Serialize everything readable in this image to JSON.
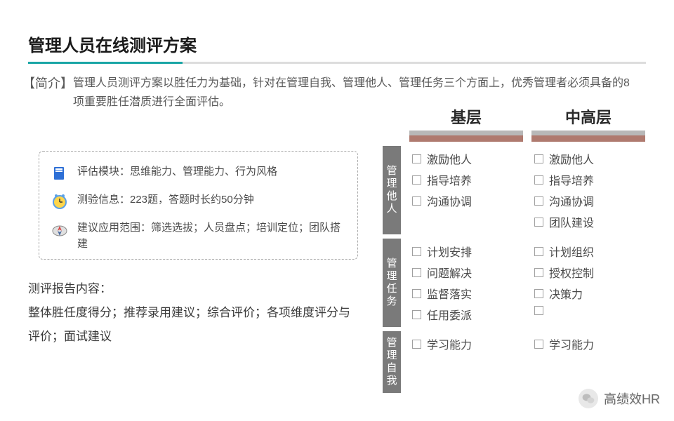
{
  "title": "管理人员在线测评方案",
  "intro": {
    "tag": "【简介】",
    "text": "管理人员测评方案以胜任力为基础，针对在管理自我、管理他人、管理任务三个方面上，优秀管理者必须具备的8项重要胜任潜质进行全面评估。"
  },
  "info_box": {
    "items": [
      {
        "icon": "book",
        "text": "评估模块：思维能力、管理能力、行为风格"
      },
      {
        "icon": "clock",
        "text": "测验信息：223题，答题时长约50分钟"
      },
      {
        "icon": "compass",
        "text": "建议应用范围：筛选选拔；人员盘点；培训定位；团队搭建"
      }
    ]
  },
  "report": {
    "heading": "测评报告内容：",
    "body": "整体胜任度得分；推荐录用建议；综合评价；各项维度评分与评价；面试建议"
  },
  "matrix": {
    "columns": [
      {
        "label": "基层"
      },
      {
        "label": "中高层"
      }
    ],
    "header_bar_colors": {
      "top": "#b8b8b8",
      "bottom": "#af7a6f"
    },
    "row_label_bg": "#7a7a7a",
    "rows": [
      {
        "label": "管理他人",
        "cells": [
          [
            "激励他人",
            "指导培养",
            "沟通协调"
          ],
          [
            "激励他人",
            "指导培养",
            "沟通协调",
            "团队建设"
          ]
        ]
      },
      {
        "label": "管理任务",
        "cells": [
          [
            "计划安排",
            "问题解决",
            "监督落实",
            "任用委派"
          ],
          [
            "计划组织",
            "授权控制",
            "决策力",
            ""
          ]
        ]
      },
      {
        "label": "管理自我",
        "cells": [
          [
            "学习能力"
          ],
          [
            "学习能力"
          ]
        ]
      }
    ]
  },
  "watermark": {
    "text": "高绩效HR"
  },
  "icons": {
    "book_colors": {
      "cover": "#2d6fd6",
      "page": "#ffffff"
    },
    "clock_colors": {
      "face": "#ffd54a",
      "ring": "#5aa0e6"
    },
    "compass_colors": {
      "base": "#6a6a6a",
      "needle": "#d64545"
    }
  }
}
